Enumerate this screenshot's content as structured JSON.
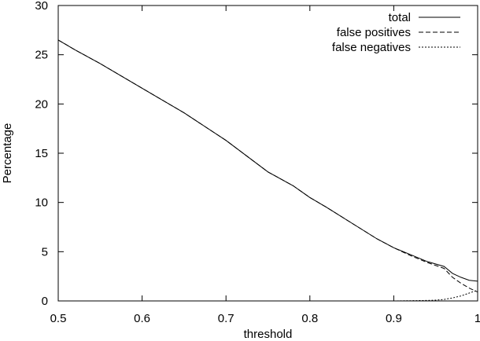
{
  "chart_data": {
    "type": "line",
    "title": "",
    "xlabel": "threshold",
    "ylabel": "Percentage",
    "xlim": [
      0.5,
      1.0
    ],
    "ylim": [
      0,
      30
    ],
    "x_ticks": [
      0.5,
      0.6,
      0.7,
      0.8,
      0.9,
      1.0
    ],
    "x_tick_labels": [
      "0.5",
      "0.6",
      "0.7",
      "0.8",
      "0.9",
      "1"
    ],
    "y_ticks": [
      0,
      5,
      10,
      15,
      20,
      25,
      30
    ],
    "y_tick_labels": [
      "0",
      "5",
      "10",
      "15",
      "20",
      "25",
      "30"
    ],
    "grid": false,
    "legend_position": "top-right",
    "series": [
      {
        "name": "total",
        "line_style": "solid",
        "x": [
          0.5,
          0.52,
          0.55,
          0.6,
          0.65,
          0.7,
          0.75,
          0.78,
          0.8,
          0.82,
          0.85,
          0.88,
          0.9,
          0.92,
          0.94,
          0.96,
          0.97,
          0.98,
          0.99,
          1.0
        ],
        "y": [
          26.5,
          25.5,
          24.1,
          21.6,
          19.1,
          16.3,
          13.1,
          11.7,
          10.5,
          9.5,
          7.9,
          6.3,
          5.4,
          4.7,
          4.0,
          3.5,
          2.8,
          2.4,
          2.1,
          2.0
        ]
      },
      {
        "name": "false positives",
        "line_style": "dashed",
        "x": [
          0.5,
          0.52,
          0.55,
          0.6,
          0.65,
          0.7,
          0.75,
          0.78,
          0.8,
          0.82,
          0.85,
          0.88,
          0.9,
          0.92,
          0.94,
          0.96,
          0.97,
          0.98,
          0.99,
          1.0
        ],
        "y": [
          26.5,
          25.5,
          24.1,
          21.6,
          19.1,
          16.3,
          13.1,
          11.7,
          10.5,
          9.5,
          7.9,
          6.3,
          5.4,
          4.6,
          3.9,
          3.3,
          2.4,
          1.8,
          1.3,
          0.9
        ]
      },
      {
        "name": "false negatives",
        "line_style": "dotted",
        "x": [
          0.9,
          0.92,
          0.94,
          0.95,
          0.96,
          0.97,
          0.98,
          0.99,
          1.0
        ],
        "y": [
          0.0,
          0.02,
          0.05,
          0.08,
          0.15,
          0.3,
          0.5,
          0.8,
          1.1
        ]
      }
    ]
  }
}
